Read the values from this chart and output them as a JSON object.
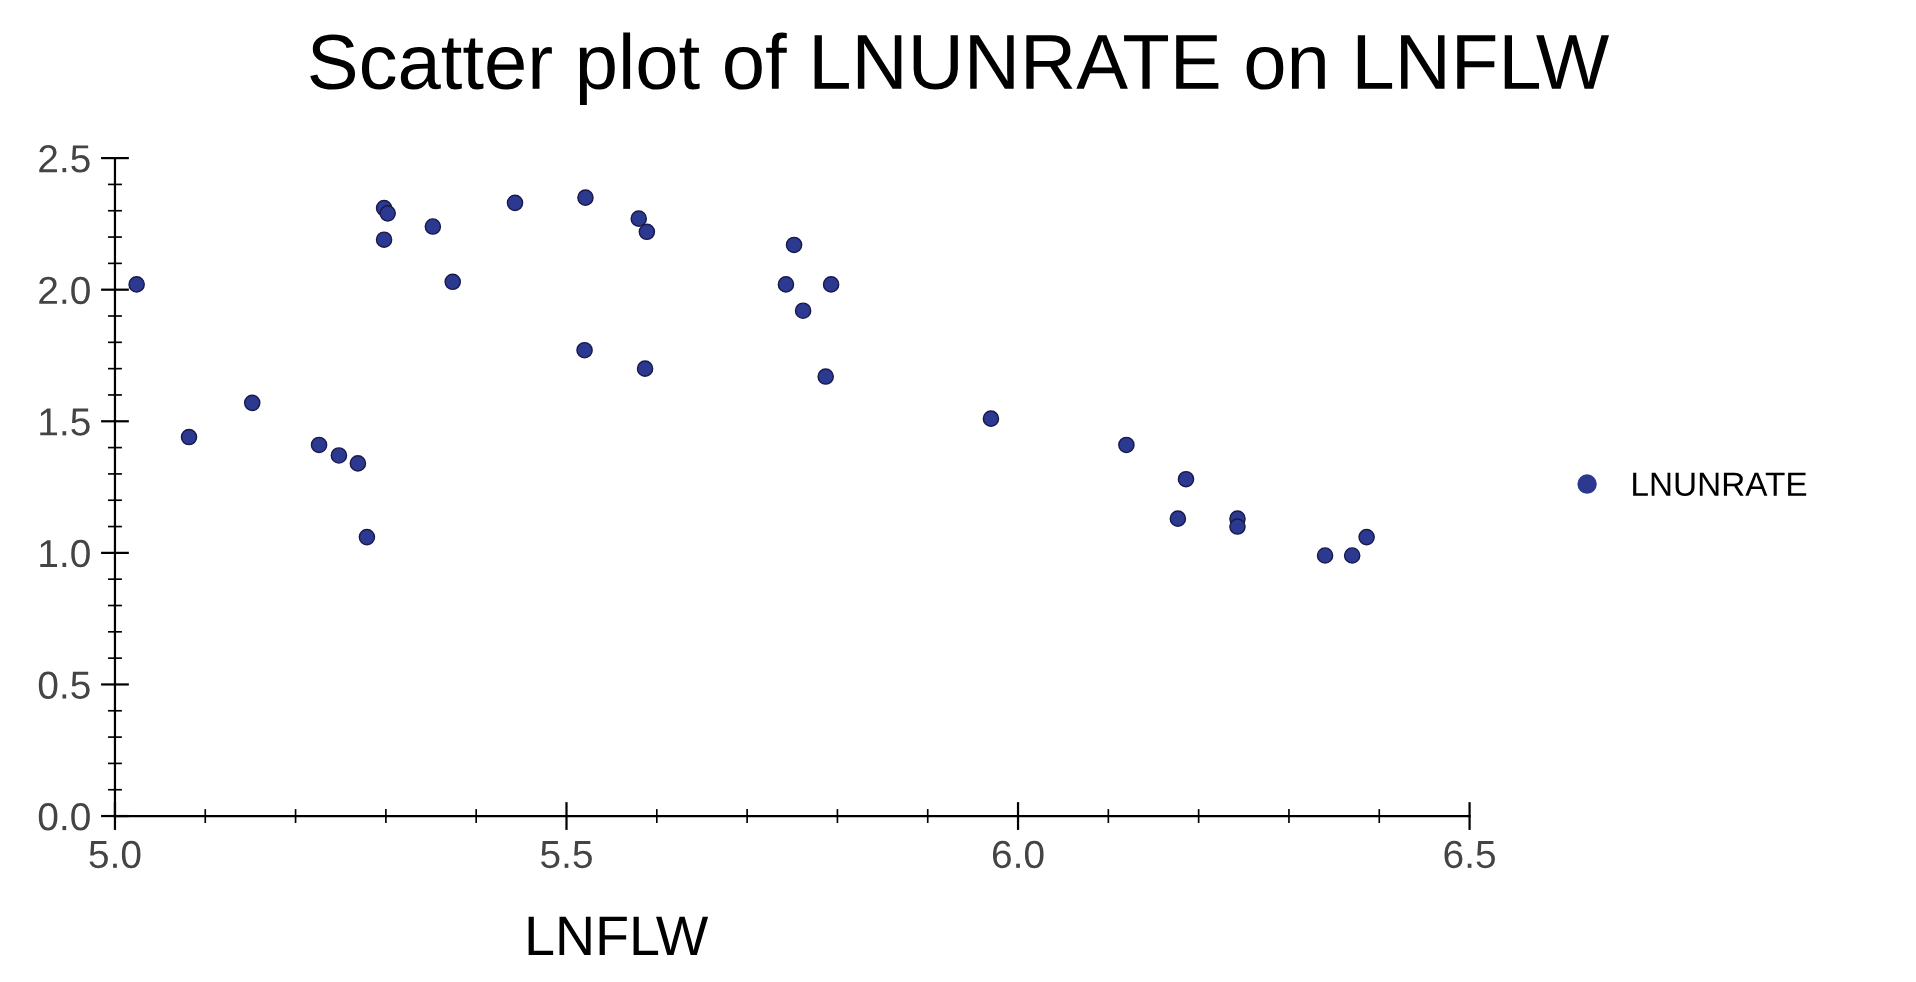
{
  "chart_data": {
    "type": "scatter",
    "title": "Scatter plot of LNUNRATE on LNFLW",
    "xlabel": "LNFLW",
    "x": [
      5.024,
      5.082,
      5.152,
      5.226,
      5.248,
      5.269,
      5.279,
      5.298,
      5.302,
      5.298,
      5.352,
      5.374,
      5.443,
      5.521,
      5.52,
      5.58,
      5.589,
      5.587,
      5.752,
      5.743,
      5.793,
      5.762,
      5.787,
      5.97,
      6.12,
      6.186,
      6.177,
      6.243,
      6.243,
      6.34,
      6.37,
      6.386
    ],
    "series": [
      {
        "name": "LNUNRATE",
        "color": "#2b3990",
        "values": [
          2.02,
          1.44,
          1.57,
          1.41,
          1.37,
          1.34,
          1.06,
          2.31,
          2.29,
          2.19,
          2.24,
          2.03,
          2.33,
          2.35,
          1.77,
          2.27,
          2.22,
          1.7,
          2.17,
          2.02,
          2.02,
          1.92,
          1.67,
          1.51,
          1.41,
          1.28,
          1.13,
          1.13,
          1.1,
          0.99,
          0.99,
          1.06
        ]
      }
    ],
    "xlim": [
      5.0,
      6.5
    ],
    "ylim": [
      0.0,
      2.5
    ],
    "xticks": [
      {
        "value": 5.0,
        "label": "5.0"
      },
      {
        "value": 5.1,
        "label": null
      },
      {
        "value": 5.2,
        "label": null
      },
      {
        "value": 5.3,
        "label": null
      },
      {
        "value": 5.4,
        "label": null
      },
      {
        "value": 5.5,
        "label": "5.5"
      },
      {
        "value": 5.6,
        "label": null
      },
      {
        "value": 5.7,
        "label": null
      },
      {
        "value": 5.8,
        "label": null
      },
      {
        "value": 5.9,
        "label": null
      },
      {
        "value": 6.0,
        "label": "6.0"
      },
      {
        "value": 6.1,
        "label": null
      },
      {
        "value": 6.2,
        "label": null
      },
      {
        "value": 6.3,
        "label": null
      },
      {
        "value": 6.4,
        "label": null
      },
      {
        "value": 6.5,
        "label": "6.5"
      }
    ],
    "yticks": [
      {
        "value": 0.0,
        "label": "0.0"
      },
      {
        "value": 0.1,
        "label": null
      },
      {
        "value": 0.2,
        "label": null
      },
      {
        "value": 0.3,
        "label": null
      },
      {
        "value": 0.4,
        "label": null
      },
      {
        "value": 0.5,
        "label": "0.5"
      },
      {
        "value": 0.6,
        "label": null
      },
      {
        "value": 0.7,
        "label": null
      },
      {
        "value": 0.8,
        "label": null
      },
      {
        "value": 0.9,
        "label": null
      },
      {
        "value": 1.0,
        "label": "1.0"
      },
      {
        "value": 1.1,
        "label": null
      },
      {
        "value": 1.2,
        "label": null
      },
      {
        "value": 1.3,
        "label": null
      },
      {
        "value": 1.4,
        "label": null
      },
      {
        "value": 1.5,
        "label": "1.5"
      },
      {
        "value": 1.6,
        "label": null
      },
      {
        "value": 1.7,
        "label": null
      },
      {
        "value": 1.8,
        "label": null
      },
      {
        "value": 1.9,
        "label": null
      },
      {
        "value": 2.0,
        "label": "2.0"
      },
      {
        "value": 2.1,
        "label": null
      },
      {
        "value": 2.2,
        "label": null
      },
      {
        "value": 2.3,
        "label": null
      },
      {
        "value": 2.4,
        "label": null
      },
      {
        "value": 2.5,
        "label": "2.5"
      }
    ],
    "marker": "circle",
    "grid": false,
    "legend": "right"
  }
}
